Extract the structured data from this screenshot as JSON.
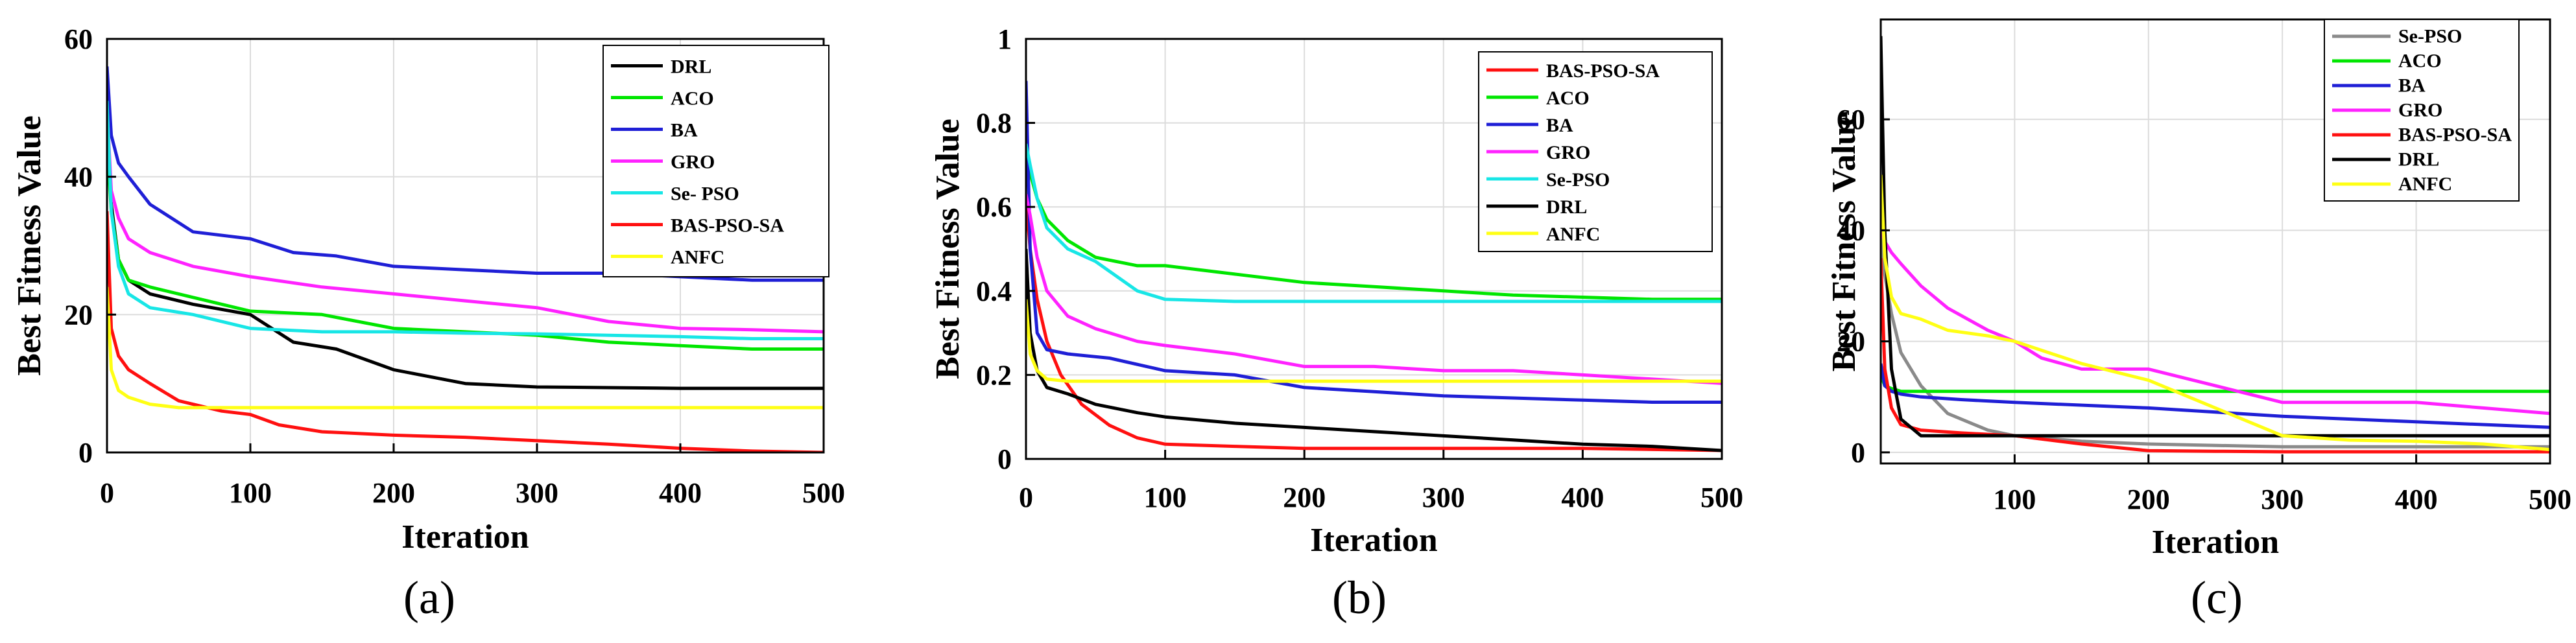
{
  "chart_data": [
    {
      "type": "line",
      "panel_label": "(a)",
      "xlabel": "Iteration",
      "ylabel": "Best Fitness Value",
      "xlim": [
        0,
        500
      ],
      "ylim": [
        0,
        60
      ],
      "xticks": [
        0,
        100,
        200,
        300,
        400,
        500
      ],
      "yticks": [
        0,
        20,
        40,
        60
      ],
      "xtick_labels": [
        "0",
        "100",
        "200",
        "300",
        "400",
        "500"
      ],
      "ytick_labels": [
        "0",
        "20",
        "40",
        "60"
      ],
      "grid": true,
      "legend_position": "top-right",
      "series": [
        {
          "name": "DRL",
          "color": "#000000",
          "x": [
            0,
            3,
            8,
            15,
            30,
            60,
            100,
            130,
            160,
            200,
            250,
            300,
            350,
            400,
            450,
            500
          ],
          "y": [
            48,
            36,
            28,
            25,
            23,
            21.5,
            20,
            16,
            15,
            12,
            10,
            9.5,
            9.4,
            9.3,
            9.3,
            9.3
          ]
        },
        {
          "name": "ACO",
          "color": "#00e600",
          "x": [
            0,
            3,
            8,
            15,
            30,
            60,
            100,
            150,
            200,
            250,
            300,
            350,
            400,
            450,
            500
          ],
          "y": [
            45,
            35,
            28,
            25,
            24,
            22.5,
            20.5,
            20,
            18,
            17.5,
            17,
            16,
            15.5,
            15,
            15
          ]
        },
        {
          "name": "BA",
          "color": "#1f1fd6",
          "x": [
            0,
            3,
            8,
            15,
            30,
            60,
            100,
            130,
            160,
            200,
            250,
            300,
            350,
            400,
            450,
            500
          ],
          "y": [
            56,
            46,
            42,
            40,
            36,
            32,
            31,
            29,
            28.5,
            27,
            26.5,
            26,
            26,
            25.5,
            25,
            25
          ]
        },
        {
          "name": "GRO",
          "color": "#ff22ff",
          "x": [
            0,
            3,
            8,
            15,
            30,
            60,
            100,
            150,
            200,
            250,
            300,
            350,
            400,
            450,
            500
          ],
          "y": [
            50,
            38,
            34,
            31,
            29,
            27,
            25.5,
            24,
            23,
            22,
            21,
            19,
            18,
            17.8,
            17.5
          ]
        },
        {
          "name": "Se- PSO",
          "color": "#18e6e6",
          "x": [
            0,
            3,
            8,
            15,
            30,
            60,
            100,
            150,
            200,
            250,
            300,
            350,
            400,
            450,
            500
          ],
          "y": [
            51,
            35,
            27,
            23,
            21,
            20,
            18,
            17.5,
            17.5,
            17.3,
            17.2,
            17,
            16.8,
            16.5,
            16.5
          ]
        },
        {
          "name": "BAS-PSO-SA",
          "color": "#ff1010",
          "x": [
            0,
            3,
            8,
            15,
            30,
            50,
            80,
            100,
            120,
            150,
            200,
            250,
            300,
            350,
            400,
            450,
            500
          ],
          "y": [
            35,
            18,
            14,
            12,
            10,
            7.5,
            6,
            5.5,
            4,
            3,
            2.5,
            2.2,
            1.7,
            1.2,
            0.6,
            0.2,
            0
          ]
        },
        {
          "name": "ANFC",
          "color": "#ffff14",
          "x": [
            0,
            3,
            8,
            15,
            30,
            50,
            100,
            200,
            300,
            400,
            500
          ],
          "y": [
            24,
            12,
            9,
            8,
            7,
            6.5,
            6.5,
            6.5,
            6.5,
            6.5,
            6.5
          ]
        }
      ]
    },
    {
      "type": "line",
      "panel_label": "(b)",
      "xlabel": "Iteration",
      "ylabel": "Best Fitness Value",
      "xlim": [
        0,
        500
      ],
      "ylim": [
        0,
        1
      ],
      "xticks": [
        0,
        100,
        200,
        300,
        400,
        500
      ],
      "yticks": [
        0,
        0.2,
        0.4,
        0.6,
        0.8,
        1
      ],
      "xtick_labels": [
        "0",
        "100",
        "200",
        "300",
        "400",
        "500"
      ],
      "ytick_labels": [
        "0",
        "0.2",
        "0.4",
        "0.6",
        "0.8",
        "1"
      ],
      "grid": true,
      "legend_position": "top-right",
      "series": [
        {
          "name": "BAS-PSO-SA",
          "color": "#ff1010",
          "x": [
            0,
            3,
            8,
            15,
            25,
            40,
            60,
            80,
            100,
            150,
            200,
            300,
            400,
            500
          ],
          "y": [
            0.62,
            0.5,
            0.38,
            0.28,
            0.2,
            0.13,
            0.08,
            0.05,
            0.035,
            0.03,
            0.025,
            0.025,
            0.025,
            0.02
          ]
        },
        {
          "name": "ACO",
          "color": "#00e600",
          "x": [
            0,
            3,
            8,
            15,
            30,
            50,
            80,
            100,
            150,
            200,
            250,
            300,
            350,
            400,
            450,
            500
          ],
          "y": [
            0.75,
            0.68,
            0.62,
            0.57,
            0.52,
            0.48,
            0.46,
            0.46,
            0.44,
            0.42,
            0.41,
            0.4,
            0.39,
            0.385,
            0.38,
            0.38
          ]
        },
        {
          "name": "BA",
          "color": "#1f1fd6",
          "x": [
            0,
            3,
            8,
            15,
            30,
            60,
            100,
            150,
            200,
            250,
            300,
            350,
            400,
            450,
            500
          ],
          "y": [
            0.9,
            0.5,
            0.3,
            0.26,
            0.25,
            0.24,
            0.21,
            0.2,
            0.17,
            0.16,
            0.15,
            0.145,
            0.14,
            0.135,
            0.135
          ]
        },
        {
          "name": "GRO",
          "color": "#ff22ff",
          "x": [
            0,
            3,
            8,
            15,
            30,
            50,
            80,
            100,
            150,
            200,
            250,
            300,
            350,
            400,
            450,
            500
          ],
          "y": [
            0.63,
            0.58,
            0.48,
            0.4,
            0.34,
            0.31,
            0.28,
            0.27,
            0.25,
            0.22,
            0.22,
            0.21,
            0.21,
            0.2,
            0.19,
            0.18
          ]
        },
        {
          "name": "Se-PSO",
          "color": "#18e6e6",
          "x": [
            0,
            3,
            8,
            15,
            30,
            50,
            80,
            100,
            150,
            200,
            300,
            400,
            500
          ],
          "y": [
            0.75,
            0.7,
            0.62,
            0.55,
            0.5,
            0.47,
            0.4,
            0.38,
            0.375,
            0.375,
            0.375,
            0.375,
            0.375
          ]
        },
        {
          "name": "DRL",
          "color": "#000000",
          "x": [
            0,
            3,
            8,
            15,
            30,
            50,
            80,
            100,
            150,
            200,
            250,
            300,
            350,
            400,
            450,
            500
          ],
          "y": [
            0.5,
            0.3,
            0.21,
            0.17,
            0.155,
            0.13,
            0.11,
            0.1,
            0.085,
            0.075,
            0.065,
            0.055,
            0.045,
            0.035,
            0.03,
            0.02
          ]
        },
        {
          "name": "ANFC",
          "color": "#ffff14",
          "x": [
            0,
            3,
            8,
            15,
            30,
            60,
            100,
            200,
            300,
            400,
            500
          ],
          "y": [
            0.38,
            0.25,
            0.21,
            0.19,
            0.185,
            0.185,
            0.185,
            0.185,
            0.185,
            0.185,
            0.185
          ]
        }
      ]
    },
    {
      "type": "line",
      "panel_label": "(c)",
      "xlabel": "Iteration",
      "ylabel": "Best Fitness Value",
      "xlim": [
        0,
        500
      ],
      "ylim": [
        -2,
        78
      ],
      "xticks": [
        100,
        200,
        300,
        400,
        500
      ],
      "yticks": [
        0,
        20,
        40,
        60
      ],
      "xtick_labels": [
        "100",
        "200",
        "300",
        "400",
        "500"
      ],
      "ytick_labels": [
        "0",
        "20",
        "40",
        "60"
      ],
      "grid": true,
      "legend_position": "top-right",
      "series": [
        {
          "name": "Se-PSO",
          "color": "#8a8a8a",
          "x": [
            0,
            3,
            8,
            15,
            30,
            50,
            80,
            100,
            150,
            200,
            300,
            400,
            500
          ],
          "y": [
            40,
            32,
            25,
            18,
            12,
            7,
            4,
            3,
            2,
            1.5,
            1,
            1,
            1
          ]
        },
        {
          "name": "ACO",
          "color": "#00e600",
          "x": [
            0,
            3,
            8,
            15,
            30,
            100,
            200,
            300,
            400,
            500
          ],
          "y": [
            14,
            12,
            11.5,
            11,
            11,
            11,
            11,
            11,
            11,
            11
          ]
        },
        {
          "name": "BA",
          "color": "#1f1fd6",
          "x": [
            0,
            3,
            8,
            15,
            30,
            60,
            100,
            200,
            300,
            400,
            500
          ],
          "y": [
            16,
            12,
            11,
            10.5,
            10,
            9.5,
            9,
            8,
            6.5,
            5.5,
            4.5
          ]
        },
        {
          "name": "GRO",
          "color": "#ff22ff",
          "x": [
            0,
            3,
            8,
            15,
            30,
            50,
            80,
            100,
            120,
            150,
            200,
            250,
            300,
            350,
            400,
            450,
            500
          ],
          "y": [
            40,
            38,
            36,
            34,
            30,
            26,
            22,
            20,
            17,
            15,
            15,
            12,
            9,
            9,
            9,
            8,
            7
          ]
        },
        {
          "name": "BAS-PSO-SA",
          "color": "#ff1010",
          "x": [
            0,
            3,
            8,
            15,
            30,
            60,
            100,
            150,
            200,
            250,
            300,
            400,
            500
          ],
          "y": [
            35,
            15,
            8,
            5,
            4,
            3.5,
            3,
            1.5,
            0.3,
            0.2,
            0.1,
            0.1,
            0.1
          ]
        },
        {
          "name": "DRL",
          "color": "#000000",
          "x": [
            0,
            3,
            8,
            15,
            30,
            60,
            100,
            200,
            300,
            400,
            500
          ],
          "y": [
            75,
            40,
            15,
            6,
            3,
            3,
            3,
            3,
            3,
            3,
            3
          ]
        },
        {
          "name": "ANFC",
          "color": "#ffff14",
          "x": [
            0,
            3,
            8,
            15,
            30,
            50,
            80,
            100,
            150,
            200,
            250,
            280,
            300,
            350,
            400,
            450,
            500
          ],
          "y": [
            50,
            35,
            28,
            25,
            24,
            22,
            21,
            20,
            16,
            13,
            8,
            5,
            3,
            2.2,
            2,
            1.5,
            0.5
          ]
        }
      ]
    }
  ]
}
